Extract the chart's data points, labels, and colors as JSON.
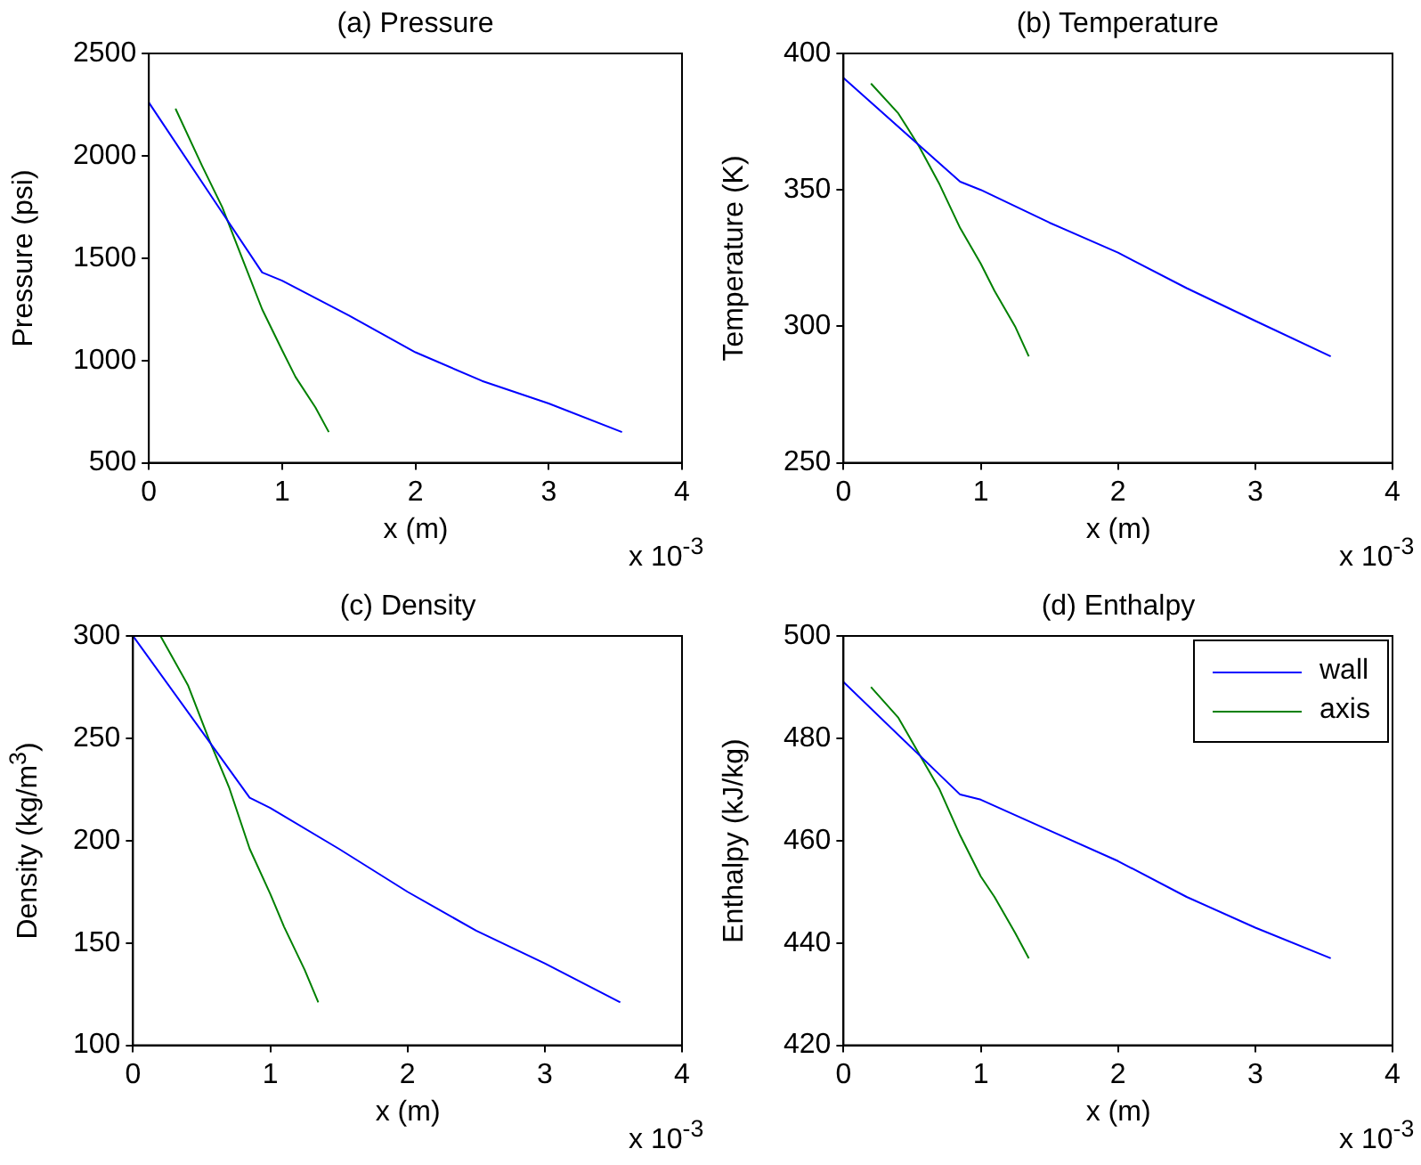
{
  "chart_data": [
    {
      "type": "line",
      "title": "(a) Pressure",
      "xlabel": "x (m)",
      "ylabel": "Pressure (psi)",
      "annotations": [
        "x 10$^{-3}$"
      ],
      "xlim": [
        0,
        4
      ],
      "xticks": [
        0,
        1,
        2,
        3,
        4
      ],
      "ylim": [
        500,
        2500
      ],
      "yticks": [
        500,
        1000,
        1500,
        2000,
        2500
      ],
      "grid": false,
      "legend": false,
      "series": [
        {
          "color": "#0000ff",
          "x": [
            0,
            0.85,
            1.0,
            1.5,
            2.0,
            2.5,
            3.0,
            3.55
          ],
          "values": [
            2260,
            1430,
            1390,
            1220,
            1040,
            900,
            790,
            650
          ]
        },
        {
          "color": "#008000",
          "x": [
            0.2,
            0.4,
            0.55,
            0.7,
            0.85,
            1.0,
            1.1,
            1.25,
            1.35
          ],
          "values": [
            2230,
            1950,
            1750,
            1500,
            1250,
            1050,
            920,
            770,
            650
          ]
        }
      ]
    },
    {
      "type": "line",
      "title": "(b) Temperature",
      "xlabel": "x (m)",
      "ylabel": "Temperature (K)",
      "annotations": [
        "x 10$^{-3}$"
      ],
      "xlim": [
        0,
        4
      ],
      "xticks": [
        0,
        1,
        2,
        3,
        4
      ],
      "ylim": [
        250,
        400
      ],
      "yticks": [
        250,
        300,
        350,
        400
      ],
      "grid": false,
      "legend": false,
      "series": [
        {
          "color": "#0000ff",
          "x": [
            0,
            0.85,
            1.0,
            1.5,
            2.0,
            2.5,
            3.0,
            3.55
          ],
          "values": [
            391,
            353,
            350,
            338,
            327,
            314,
            302,
            289
          ]
        },
        {
          "color": "#008000",
          "x": [
            0.2,
            0.4,
            0.55,
            0.7,
            0.85,
            1.0,
            1.1,
            1.25,
            1.35
          ],
          "values": [
            389,
            378,
            366,
            352,
            336,
            323,
            313,
            300,
            289
          ]
        }
      ]
    },
    {
      "type": "line",
      "title": "(c) Density",
      "xlabel": "x (m)",
      "ylabel": "Density (kg/m$^{3}$)",
      "annotations": [
        "x 10$^{-3}$"
      ],
      "xlim": [
        0,
        4
      ],
      "xticks": [
        0,
        1,
        2,
        3,
        4
      ],
      "ylim": [
        100,
        300
      ],
      "yticks": [
        100,
        150,
        200,
        250,
        300
      ],
      "grid": false,
      "legend": false,
      "series": [
        {
          "color": "#0000ff",
          "x": [
            0,
            0.85,
            1.0,
            1.5,
            2.0,
            2.5,
            3.0,
            3.55
          ],
          "values": [
            300,
            221,
            216,
            196,
            175,
            156,
            140,
            121
          ]
        },
        {
          "color": "#008000",
          "x": [
            0.2,
            0.4,
            0.55,
            0.7,
            0.85,
            1.0,
            1.1,
            1.25,
            1.35
          ],
          "values": [
            300,
            276,
            250,
            226,
            196,
            174,
            158,
            137,
            121
          ]
        }
      ]
    },
    {
      "type": "line",
      "title": "(d) Enthalpy",
      "xlabel": "x (m)",
      "ylabel": "Enthalpy (kJ/kg)",
      "annotations": [
        "x 10$^{-3}$"
      ],
      "xlim": [
        0,
        4
      ],
      "xticks": [
        0,
        1,
        2,
        3,
        4
      ],
      "ylim": [
        420,
        500
      ],
      "yticks": [
        420,
        440,
        460,
        480,
        500
      ],
      "grid": false,
      "legend": "top right",
      "series": [
        {
          "name": "wall",
          "color": "#0000ff",
          "x": [
            0,
            0.85,
            1.0,
            1.5,
            2.0,
            2.5,
            3.0,
            3.55
          ],
          "values": [
            491,
            469,
            468,
            462,
            456,
            449,
            443,
            437
          ]
        },
        {
          "name": "axis",
          "color": "#008000",
          "x": [
            0.2,
            0.4,
            0.55,
            0.7,
            0.85,
            1.0,
            1.1,
            1.25,
            1.35
          ],
          "values": [
            490,
            484,
            477,
            470,
            461,
            453,
            449,
            442,
            437
          ]
        }
      ]
    }
  ]
}
